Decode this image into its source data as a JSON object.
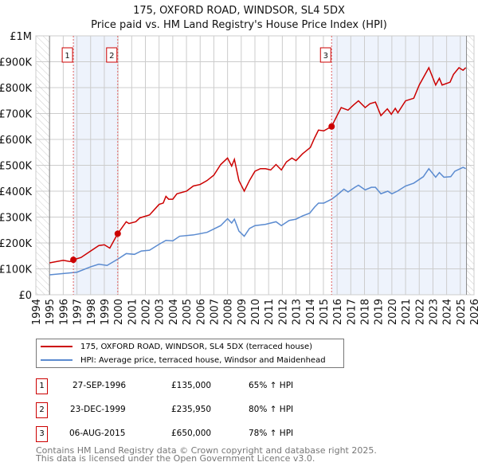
{
  "title": "175, OXFORD ROAD, WINDSOR, SL4 5DX",
  "subtitle": "Price paid vs. HM Land Registry's House Price Index (HPI)",
  "chart_data": {
    "type": "line",
    "xlim": [
      1994,
      2026
    ],
    "ylim": [
      0,
      1000000
    ],
    "y_ticks": [
      0,
      100000,
      200000,
      300000,
      400000,
      500000,
      600000,
      700000,
      800000,
      900000,
      1000000
    ],
    "y_tick_labels": [
      "£0",
      "£100K",
      "£200K",
      "£300K",
      "£400K",
      "£500K",
      "£600K",
      "£700K",
      "£800K",
      "£900K",
      "£1M"
    ],
    "x_ticks": [
      1994,
      1995,
      1996,
      1997,
      1998,
      1999,
      2000,
      2001,
      2002,
      2003,
      2004,
      2005,
      2006,
      2007,
      2008,
      2009,
      2010,
      2011,
      2012,
      2013,
      2014,
      2015,
      2016,
      2017,
      2018,
      2019,
      2020,
      2021,
      2022,
      2023,
      2024,
      2025,
      2026
    ],
    "x_tick_labels": [
      "1994",
      "1995",
      "1996",
      "1997",
      "1998",
      "1999",
      "2000",
      "2001",
      "2002",
      "2003",
      "2004",
      "2005",
      "2006",
      "2007",
      "2008",
      "2009",
      "2010",
      "2011",
      "2012",
      "2013",
      "2014",
      "2015",
      "2016",
      "2017",
      "2018",
      "2019",
      "2020",
      "2021",
      "2022",
      "2023",
      "2024",
      "2025",
      "2026"
    ],
    "grid": true,
    "data_range": [
      1995,
      2025.45
    ],
    "series": [
      {
        "name": "175, OXFORD ROAD, WINDSOR, SL4 5DX (terraced house)",
        "color": "#cc0000",
        "points": [
          [
            1995,
            123000
          ],
          [
            1996,
            133000
          ],
          [
            1996.5,
            128000
          ],
          [
            1996.74,
            135000
          ],
          [
            1997.3,
            144000
          ],
          [
            1998,
            169000
          ],
          [
            1998.6,
            190000
          ],
          [
            1999,
            193000
          ],
          [
            1999.4,
            180000
          ],
          [
            1999.98,
            236000
          ],
          [
            2000.6,
            282000
          ],
          [
            2000.8,
            275000
          ],
          [
            2001.3,
            282000
          ],
          [
            2001.6,
            297000
          ],
          [
            2002.3,
            308000
          ],
          [
            2003,
            349000
          ],
          [
            2003.3,
            354000
          ],
          [
            2003.5,
            380000
          ],
          [
            2003.7,
            369000
          ],
          [
            2004,
            369000
          ],
          [
            2004.3,
            390000
          ],
          [
            2005,
            400000
          ],
          [
            2005.5,
            420000
          ],
          [
            2006,
            426000
          ],
          [
            2006.5,
            441000
          ],
          [
            2007,
            462000
          ],
          [
            2007.5,
            503000
          ],
          [
            2008,
            528000
          ],
          [
            2008.3,
            497000
          ],
          [
            2008.5,
            523000
          ],
          [
            2008.83,
            441000
          ],
          [
            2009.22,
            400000
          ],
          [
            2009.6,
            441000
          ],
          [
            2010,
            477000
          ],
          [
            2010.4,
            487000
          ],
          [
            2010.77,
            487000
          ],
          [
            2011.15,
            482000
          ],
          [
            2011.54,
            503000
          ],
          [
            2011.93,
            482000
          ],
          [
            2012.3,
            513000
          ],
          [
            2012.7,
            528000
          ],
          [
            2013,
            518000
          ],
          [
            2013.47,
            544000
          ],
          [
            2014.05,
            569000
          ],
          [
            2014.35,
            605000
          ],
          [
            2014.64,
            636000
          ],
          [
            2015.03,
            633000
          ],
          [
            2015.6,
            650000
          ],
          [
            2016,
            692000
          ],
          [
            2016.3,
            723000
          ],
          [
            2016.8,
            713000
          ],
          [
            2017.2,
            733000
          ],
          [
            2017.56,
            749000
          ],
          [
            2018.05,
            723000
          ],
          [
            2018.4,
            738000
          ],
          [
            2018.8,
            744000
          ],
          [
            2019.2,
            692000
          ],
          [
            2019.67,
            718000
          ],
          [
            2019.96,
            697000
          ],
          [
            2020.25,
            720000
          ],
          [
            2020.44,
            703000
          ],
          [
            2021,
            749000
          ],
          [
            2021.6,
            759000
          ],
          [
            2022,
            810000
          ],
          [
            2022.7,
            877000
          ],
          [
            2023.2,
            810000
          ],
          [
            2023.47,
            836000
          ],
          [
            2023.67,
            810000
          ],
          [
            2024.25,
            821000
          ],
          [
            2024.5,
            851000
          ],
          [
            2024.9,
            877000
          ],
          [
            2025.2,
            867000
          ],
          [
            2025.4,
            877000
          ]
        ]
      },
      {
        "name": "HPI: Average price, terraced house, Windsor and Maidenhead",
        "color": "#5b8bd0",
        "points": [
          [
            1995,
            77000
          ],
          [
            1996,
            82000
          ],
          [
            1997,
            87000
          ],
          [
            1998,
            108000
          ],
          [
            1998.6,
            118000
          ],
          [
            1999.2,
            113000
          ],
          [
            2000,
            138000
          ],
          [
            2000.6,
            159000
          ],
          [
            2001.2,
            156000
          ],
          [
            2001.7,
            169000
          ],
          [
            2002.3,
            172000
          ],
          [
            2003,
            195000
          ],
          [
            2003.5,
            210000
          ],
          [
            2004,
            208000
          ],
          [
            2004.5,
            226000
          ],
          [
            2005.5,
            231000
          ],
          [
            2006.5,
            241000
          ],
          [
            2007.5,
            267000
          ],
          [
            2008,
            294000
          ],
          [
            2008.3,
            277000
          ],
          [
            2008.5,
            292000
          ],
          [
            2008.83,
            246000
          ],
          [
            2009.22,
            226000
          ],
          [
            2009.6,
            256000
          ],
          [
            2010,
            267000
          ],
          [
            2010.77,
            272000
          ],
          [
            2011.54,
            282000
          ],
          [
            2011.93,
            267000
          ],
          [
            2012.5,
            287000
          ],
          [
            2013,
            292000
          ],
          [
            2013.5,
            305000
          ],
          [
            2014,
            315000
          ],
          [
            2014.35,
            338000
          ],
          [
            2014.64,
            354000
          ],
          [
            2015.03,
            354000
          ],
          [
            2015.6,
            369000
          ],
          [
            2016,
            385000
          ],
          [
            2016.5,
            408000
          ],
          [
            2016.8,
            397000
          ],
          [
            2017.3,
            415000
          ],
          [
            2017.56,
            423000
          ],
          [
            2018.05,
            405000
          ],
          [
            2018.5,
            415000
          ],
          [
            2018.8,
            415000
          ],
          [
            2019.2,
            390000
          ],
          [
            2019.7,
            400000
          ],
          [
            2020,
            390000
          ],
          [
            2020.4,
            400000
          ],
          [
            2021,
            420000
          ],
          [
            2021.6,
            431000
          ],
          [
            2022.3,
            456000
          ],
          [
            2022.7,
            487000
          ],
          [
            2023.2,
            454000
          ],
          [
            2023.47,
            472000
          ],
          [
            2023.8,
            454000
          ],
          [
            2024.3,
            456000
          ],
          [
            2024.6,
            477000
          ],
          [
            2025.2,
            492000
          ],
          [
            2025.4,
            487000
          ]
        ]
      }
    ],
    "sales": [
      {
        "label": "1",
        "date": "27-SEP-1996",
        "x": 1996.74,
        "price": 135000,
        "price_label": "£135,000",
        "hpi": "65% ↑ HPI"
      },
      {
        "label": "2",
        "date": "23-DEC-1999",
        "x": 1999.98,
        "price": 235950,
        "price_label": "£235,950",
        "hpi": "80% ↑ HPI"
      },
      {
        "label": "3",
        "date": "06-AUG-2015",
        "x": 2015.6,
        "price": 650000,
        "price_label": "£650,000",
        "hpi": "78% ↑ HPI"
      }
    ],
    "legend_placement": "below"
  },
  "footer": [
    "Contains HM Land Registry data © Crown copyright and database right 2025.",
    "This data is licensed under the Open Government Licence v3.0."
  ]
}
